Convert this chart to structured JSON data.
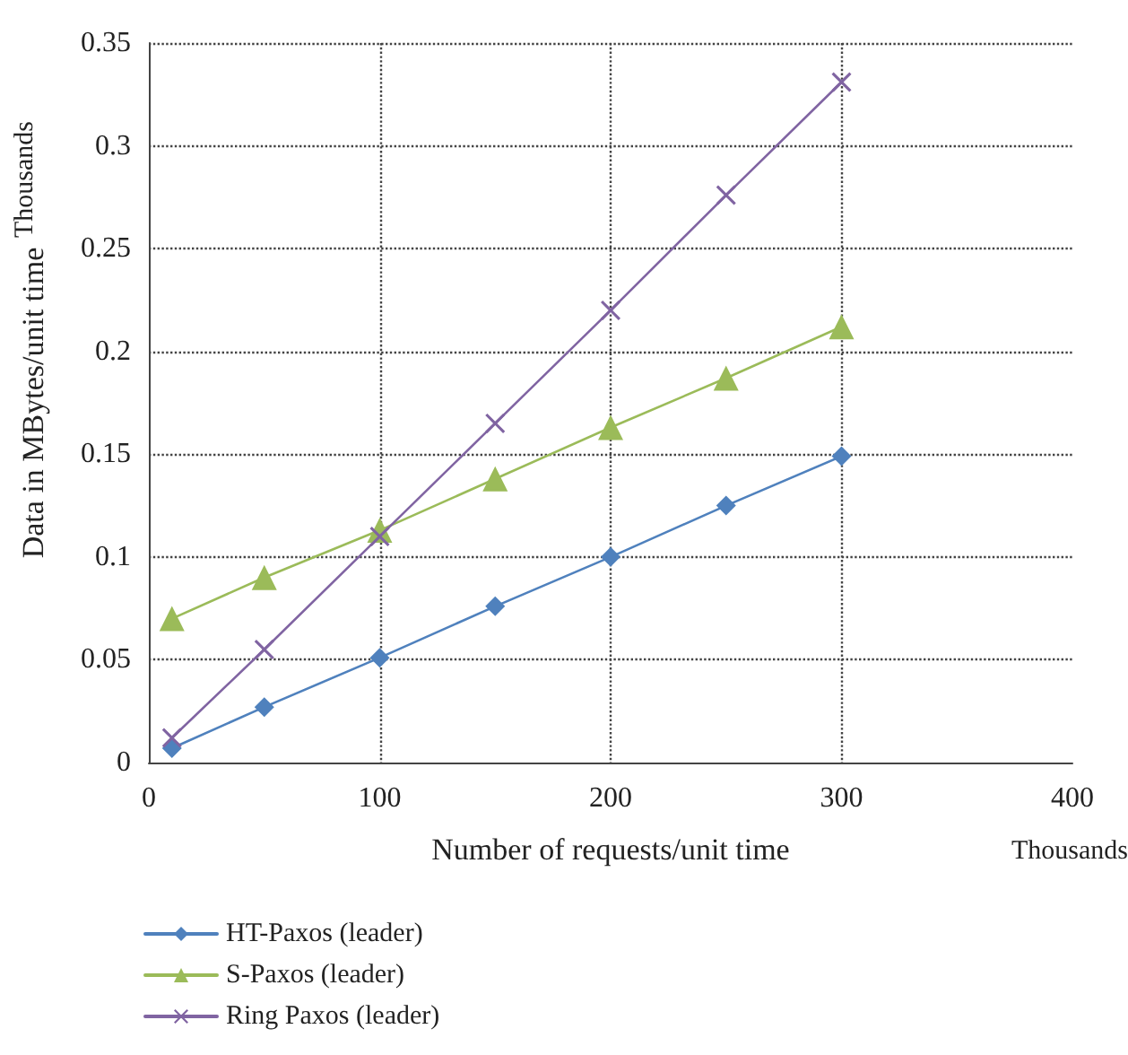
{
  "chart_data": {
    "type": "line",
    "xlabel": "Number of requests/unit time",
    "ylabel": "Data in MBytes/unit time",
    "x": [
      10,
      50,
      100,
      150,
      200,
      250,
      300
    ],
    "series": [
      {
        "name": "HT-Paxos (leader)",
        "color": "#4f81bd",
        "marker": "diamond",
        "values": [
          0.007,
          0.027,
          0.051,
          0.076,
          0.1,
          0.125,
          0.149
        ]
      },
      {
        "name": "S-Paxos (leader)",
        "color": "#9bbb59",
        "marker": "triangle",
        "values": [
          0.07,
          0.09,
          0.113,
          0.138,
          0.163,
          0.187,
          0.212
        ]
      },
      {
        "name": "Ring Paxos (leader)",
        "color": "#8064a2",
        "marker": "cross",
        "values": [
          0.012,
          0.055,
          0.11,
          0.165,
          0.22,
          0.276,
          0.331
        ]
      }
    ],
    "xlim": [
      0,
      400
    ],
    "xticks": [
      0,
      100,
      200,
      300,
      400
    ],
    "ylim": [
      0,
      0.35
    ],
    "yticks": [
      0,
      0.05,
      0.1,
      0.15,
      0.2,
      0.25,
      0.3,
      0.35
    ],
    "grid": true,
    "legend": "bottom left",
    "annotations": [
      "Thousands",
      "Thousands"
    ]
  }
}
